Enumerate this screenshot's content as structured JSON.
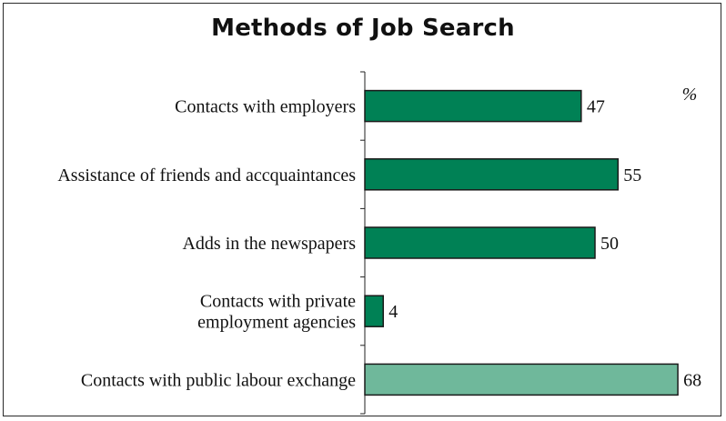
{
  "chart_data": {
    "type": "bar",
    "orientation": "horizontal",
    "title": "Methods of Job Search",
    "unit": "%",
    "categories": [
      [
        "Contacts with employers"
      ],
      [
        "Assistance of friends and accquaintances"
      ],
      [
        "Adds in the newspapers"
      ],
      [
        "Contacts with private",
        "employment agencies"
      ],
      [
        "Contacts with public labour exchange"
      ]
    ],
    "values": [
      47,
      55,
      50,
      4,
      68
    ],
    "bar_colors": [
      "#008155",
      "#008155",
      "#008155",
      "#008155",
      "#6fb89b"
    ],
    "xlim": [
      0,
      72
    ],
    "grid": false,
    "legend": "none"
  }
}
